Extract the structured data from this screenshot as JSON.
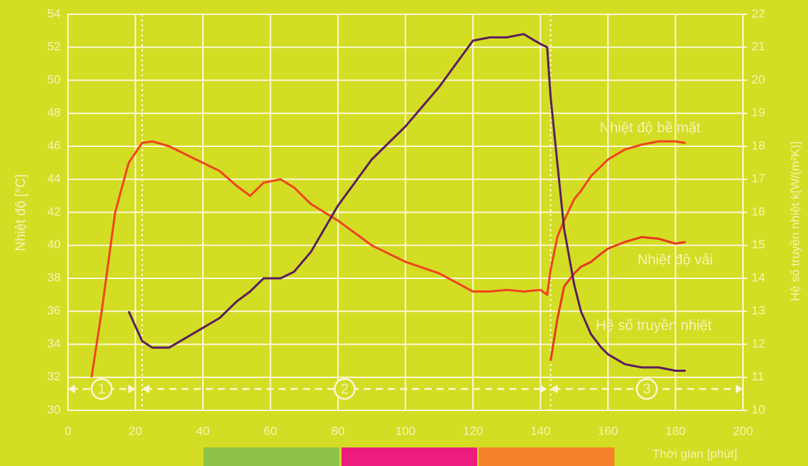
{
  "chart_data": {
    "type": "line",
    "y_label": "Nhiệt độ [°C]",
    "y2_label": "Hệ số truyền nhiệt k[W/(m²K)]",
    "x_label": "Thời gian [phút]",
    "x": [
      7,
      10,
      14,
      18,
      22,
      25,
      30,
      35,
      40,
      45,
      50,
      54,
      58,
      63,
      67,
      72,
      80,
      90,
      100,
      110,
      120,
      125,
      130,
      135,
      140,
      142,
      143,
      145,
      147,
      150,
      152,
      155,
      158,
      160,
      165,
      170,
      175,
      180,
      183
    ],
    "series": [
      {
        "name": "Nhiệt độ bề mặt",
        "color": "#f0441c",
        "axis": "y",
        "values": [
          32,
          36,
          42,
          45,
          46.2,
          46.3,
          46,
          45.5,
          45,
          44.5,
          43.6,
          43,
          43.8,
          44,
          43.5,
          42.5,
          41.5,
          40,
          39,
          38.3,
          37.2,
          37.2,
          37.3,
          37.2,
          37.3,
          37,
          38.5,
          40.5,
          41.5,
          42.8,
          43.3,
          44.2,
          44.8,
          45.2,
          45.8,
          46.1,
          46.3,
          46.3,
          46.2
        ]
      },
      {
        "name": "Nhiệt độ vải",
        "color": "#e8381e",
        "axis": "y",
        "values": [
          null,
          null,
          null,
          null,
          null,
          null,
          null,
          null,
          null,
          null,
          null,
          null,
          null,
          null,
          null,
          null,
          null,
          null,
          null,
          null,
          null,
          null,
          null,
          null,
          null,
          null,
          33,
          35.5,
          37.5,
          38.3,
          38.7,
          39,
          39.5,
          39.8,
          40.2,
          40.5,
          40.4,
          40.1,
          40.2
        ]
      },
      {
        "name": "Hệ số truyền nhiệt",
        "color": "#5a1f5c",
        "axis": "y2",
        "values": [
          null,
          null,
          null,
          13,
          12.1,
          11.9,
          11.9,
          12.2,
          12.5,
          12.8,
          13.3,
          13.6,
          14,
          14,
          14.2,
          14.8,
          16.2,
          17.6,
          18.6,
          19.8,
          21.2,
          21.3,
          21.3,
          21.4,
          21.1,
          21,
          19.5,
          17.5,
          15.5,
          13.8,
          13,
          12.3,
          11.9,
          11.7,
          11.4,
          11.3,
          11.3,
          11.2,
          11.2
        ]
      }
    ],
    "phases": [
      {
        "label": "1",
        "start": 0,
        "end": 20
      },
      {
        "label": "2",
        "start": 22,
        "end": 142
      },
      {
        "label": "3",
        "start": 143,
        "end": 200
      }
    ],
    "xlim": [
      0,
      200
    ],
    "xticks": [
      0,
      20,
      40,
      60,
      80,
      100,
      120,
      140,
      160,
      180,
      200
    ],
    "ylim": [
      30,
      54
    ],
    "yticks": [
      30,
      32,
      34,
      36,
      38,
      40,
      42,
      44,
      46,
      48,
      50,
      52,
      54
    ],
    "y2lim": [
      10,
      22
    ],
    "y2ticks": [
      10,
      11,
      12,
      13,
      14,
      15,
      16,
      17,
      18,
      19,
      20,
      21,
      22
    ],
    "grid": true
  }
}
